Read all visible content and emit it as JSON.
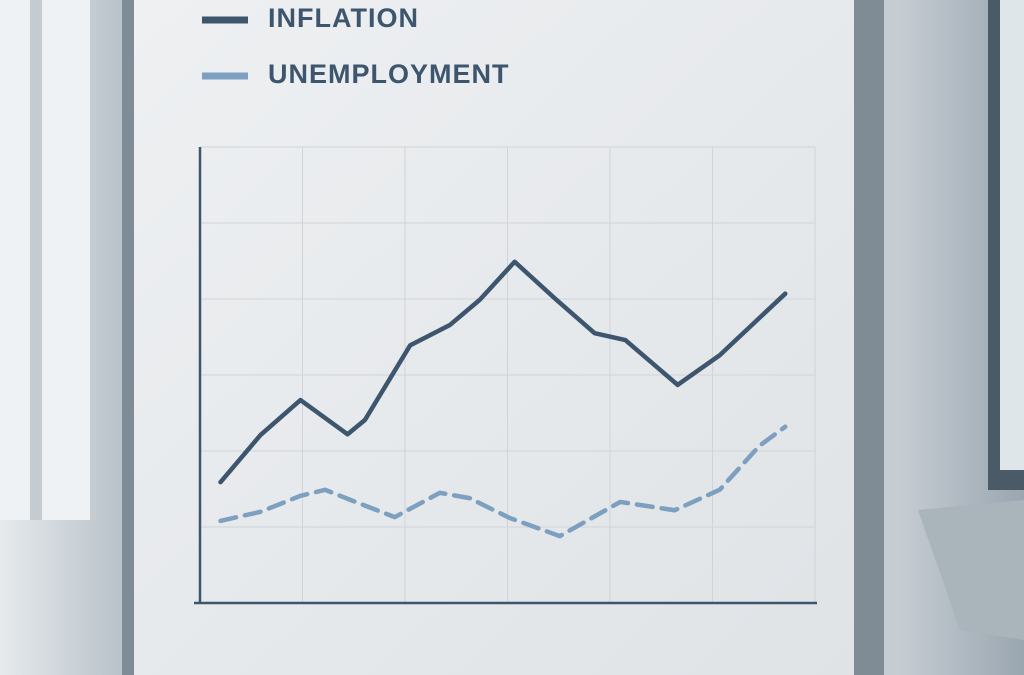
{
  "chart_data": {
    "type": "line",
    "xlim": [
      0,
      6
    ],
    "ylim": [
      0,
      6
    ],
    "xticks": [
      0,
      1,
      2,
      3,
      4,
      5,
      6
    ],
    "yticks": [
      0,
      1,
      2,
      3,
      4,
      5,
      6
    ],
    "grid": true,
    "legend": "top-left",
    "series": [
      {
        "name": "INFLATION",
        "color": "#3d566e",
        "dashed": false,
        "x": [
          0.2,
          0.59,
          0.98,
          1.44,
          1.61,
          2.05,
          2.44,
          2.73,
          3.07,
          3.46,
          3.85,
          4.15,
          4.66,
          5.07,
          5.71
        ],
        "values": [
          1.59,
          2.21,
          2.67,
          2.22,
          2.41,
          3.39,
          3.66,
          3.99,
          4.49,
          4.01,
          3.55,
          3.46,
          2.87,
          3.26,
          4.07
        ]
      },
      {
        "name": "UNEMPLOYMENT",
        "color": "#7d9fc0",
        "dashed": true,
        "x": [
          0.2,
          0.59,
          0.98,
          1.22,
          1.46,
          1.9,
          2.34,
          2.63,
          3.02,
          3.51,
          4.1,
          4.63,
          5.07,
          5.46,
          5.71
        ],
        "values": [
          1.08,
          1.2,
          1.41,
          1.49,
          1.36,
          1.13,
          1.45,
          1.38,
          1.12,
          0.88,
          1.33,
          1.22,
          1.49,
          2.07,
          2.32
        ]
      }
    ]
  }
}
